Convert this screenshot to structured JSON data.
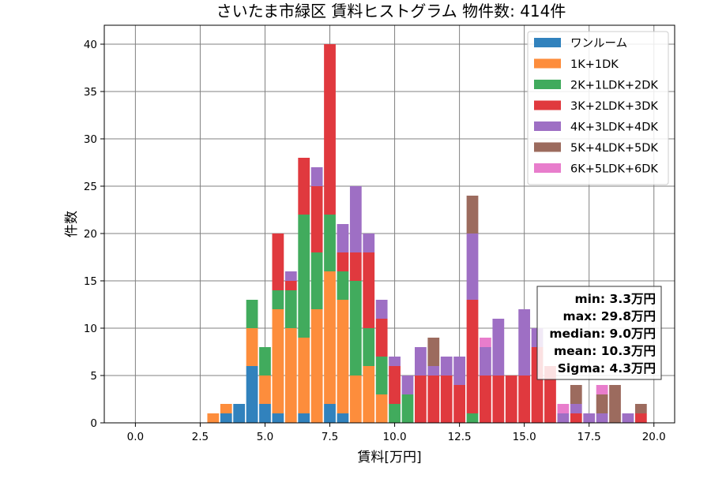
{
  "chart_data": {
    "type": "bar",
    "stacked": true,
    "title": "さいたま市緑区 賃料ヒストグラム 物件数: 414件",
    "xlabel": "賃料[万円]",
    "ylabel": "件数",
    "xlim": [
      -1.2,
      20.8
    ],
    "ylim": [
      0,
      42
    ],
    "xticks": [
      "0.0",
      "2.5",
      "5.0",
      "7.5",
      "10.0",
      "12.5",
      "15.0",
      "17.5",
      "20.0"
    ],
    "yticks": [
      "0",
      "5",
      "10",
      "15",
      "20",
      "25",
      "30",
      "35",
      "40"
    ],
    "grid": true,
    "legend_position": "top-right",
    "bin_width": 0.5,
    "x": [
      3.0,
      3.5,
      4.0,
      4.5,
      5.0,
      5.5,
      6.0,
      6.5,
      7.0,
      7.5,
      8.0,
      8.5,
      9.0,
      9.5,
      10.0,
      10.5,
      11.0,
      11.5,
      12.0,
      12.5,
      13.0,
      13.5,
      14.0,
      14.5,
      15.0,
      15.5,
      16.0,
      16.5,
      17.0,
      17.5,
      18.0,
      18.5,
      19.0,
      19.5
    ],
    "series": [
      {
        "name": "ワンルーム",
        "color": "#3182bd",
        "values": [
          0,
          1,
          2,
          6,
          2,
          1,
          0,
          1,
          0,
          2,
          1,
          0,
          0,
          0,
          0,
          0,
          0,
          0,
          0,
          0,
          0,
          0,
          0,
          0,
          0,
          0,
          0,
          0,
          0,
          0,
          0,
          0,
          0,
          0
        ]
      },
      {
        "name": "1K+1DK",
        "color": "#fd8d3c",
        "values": [
          1,
          1,
          0,
          4,
          3,
          11,
          10,
          8,
          12,
          14,
          12,
          5,
          6,
          3,
          0,
          0,
          0,
          0,
          0,
          0,
          0,
          0,
          0,
          0,
          0,
          0,
          0,
          0,
          0,
          0,
          0,
          0,
          0,
          0
        ]
      },
      {
        "name": "2K+1LDK+2DK",
        "color": "#41ab5d",
        "values": [
          0,
          0,
          0,
          3,
          3,
          2,
          4,
          13,
          6,
          6,
          3,
          10,
          4,
          4,
          2,
          3,
          0,
          0,
          0,
          0,
          1,
          0,
          0,
          0,
          0,
          0,
          0,
          0,
          0,
          0,
          0,
          0,
          0,
          0
        ]
      },
      {
        "name": "3K+2LDK+3DK",
        "color": "#e0393e",
        "values": [
          0,
          0,
          0,
          0,
          0,
          6,
          1,
          6,
          7,
          18,
          2,
          3,
          8,
          4,
          4,
          0,
          5,
          5,
          5,
          4,
          12,
          5,
          5,
          5,
          5,
          8,
          6,
          0,
          1,
          0,
          0,
          0,
          0,
          1
        ]
      },
      {
        "name": "4K+3LDK+4DK",
        "color": "#9e6fc4",
        "values": [
          0,
          0,
          0,
          0,
          0,
          0,
          1,
          0,
          2,
          0,
          3,
          7,
          2,
          2,
          1,
          2,
          3,
          1,
          2,
          3,
          7,
          3,
          6,
          0,
          7,
          2,
          0,
          1,
          1,
          1,
          1,
          0,
          1,
          0
        ]
      },
      {
        "name": "5K+4LDK+5DK",
        "color": "#9c6b5e",
        "values": [
          0,
          0,
          0,
          0,
          0,
          0,
          0,
          0,
          0,
          0,
          0,
          0,
          0,
          0,
          0,
          0,
          0,
          3,
          0,
          0,
          4,
          0,
          0,
          0,
          0,
          0,
          0,
          0,
          2,
          0,
          2,
          4,
          0,
          1
        ]
      },
      {
        "name": "6K+5LDK+6DK",
        "color": "#e87dcc",
        "values": [
          0,
          0,
          0,
          0,
          0,
          0,
          0,
          0,
          0,
          0,
          0,
          0,
          0,
          0,
          0,
          0,
          0,
          0,
          0,
          0,
          0,
          1,
          0,
          0,
          0,
          0,
          0,
          1,
          0,
          0,
          1,
          0,
          0,
          0
        ]
      }
    ],
    "stats": {
      "min": "min: 3.3万円",
      "max": "max: 29.8万円",
      "median": "median: 9.0万円",
      "mean": "mean: 10.3万円",
      "sigma": "Sigma: 4.3万円"
    }
  }
}
